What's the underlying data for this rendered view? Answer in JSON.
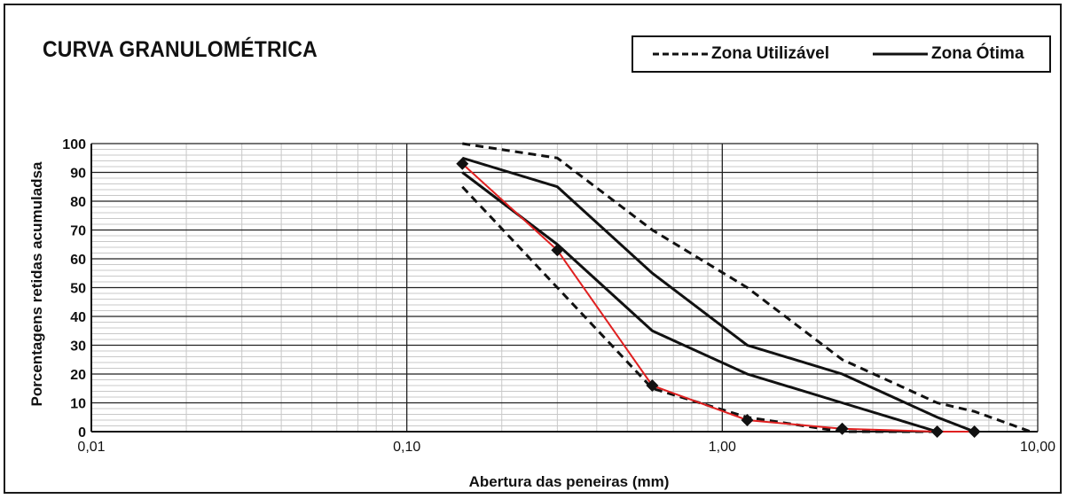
{
  "colors": {
    "zona_lines": "#111111",
    "sample_line": "#e02020",
    "markers": "#111111",
    "minor_grid": "#c8c8c8",
    "major_grid": "#222222"
  },
  "chart_data": {
    "type": "line",
    "title": "CURVA GRANULOMÉTRICA",
    "xlabel": "Abertura das peneiras (mm)",
    "ylabel": "Porcentagens  retidas  acumuladsa",
    "xscale": "log",
    "xlim": [
      0.01,
      10
    ],
    "ylim": [
      0,
      100
    ],
    "x_tick_values": [
      0.01,
      0.1,
      1,
      10
    ],
    "x_tick_labels": [
      "0,01",
      "0,10",
      "1,00",
      "10,00"
    ],
    "y_ticks": [
      0,
      10,
      20,
      30,
      40,
      50,
      60,
      70,
      80,
      90,
      100
    ],
    "grid": true,
    "legend_position": "top-right",
    "legend": [
      {
        "label": "Zona Utilizável",
        "style": "dashed"
      },
      {
        "label": "Zona Ótima",
        "style": "solid"
      }
    ],
    "series": [
      {
        "legend_entry": 0,
        "style": "dashed",
        "x": [
          0.15,
          0.3,
          0.6,
          1.2,
          2.4,
          4.8,
          6.3,
          9.5
        ],
        "y": [
          100,
          95,
          70,
          50,
          25,
          10,
          7,
          0
        ]
      },
      {
        "legend_entry": 0,
        "style": "dashed",
        "x": [
          0.15,
          0.3,
          0.6,
          1.2,
          2.4,
          4.8
        ],
        "y": [
          85,
          50,
          15,
          5,
          0,
          0
        ]
      },
      {
        "legend_entry": 1,
        "style": "solid",
        "x": [
          0.15,
          0.3,
          0.6,
          1.2,
          2.4,
          4.8,
          6.3
        ],
        "y": [
          95,
          85,
          55,
          30,
          20,
          5,
          0
        ]
      },
      {
        "legend_entry": 1,
        "style": "solid",
        "x": [
          0.15,
          0.3,
          0.6,
          1.2,
          2.4,
          4.8
        ],
        "y": [
          90,
          65,
          35,
          20,
          10,
          0
        ]
      },
      {
        "style": "solid",
        "color": "red",
        "markers": "diamond",
        "x": [
          0.15,
          0.3,
          0.6,
          1.2,
          2.4,
          4.8,
          6.3
        ],
        "y": [
          93,
          63,
          16,
          4,
          1,
          0,
          0
        ]
      }
    ]
  }
}
